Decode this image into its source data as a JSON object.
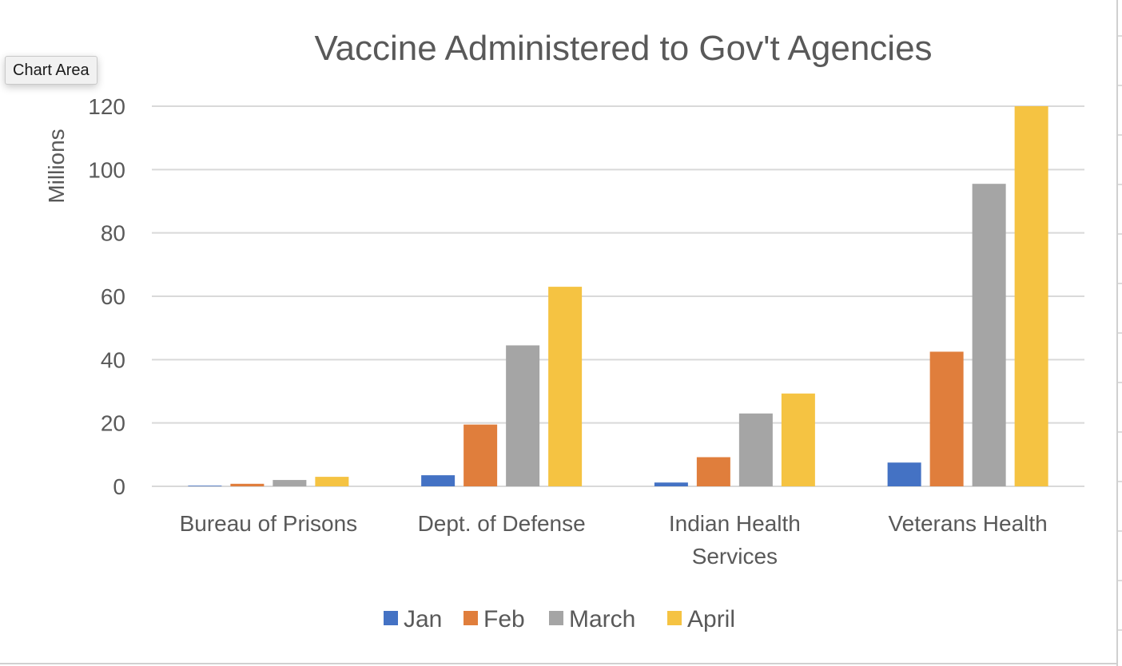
{
  "tooltip": {
    "label": "Chart Area"
  },
  "chart_data": {
    "type": "bar",
    "title": "Vaccine Administered to Gov't Agencies",
    "ylabel": "Millions",
    "xlabel": "",
    "ylim": [
      0,
      120
    ],
    "yticks": [
      0,
      20,
      40,
      60,
      80,
      100,
      120
    ],
    "grid": true,
    "legend_position": "bottom",
    "categories": [
      [
        "Bureau of Prisons"
      ],
      [
        "Dept. of Defense"
      ],
      [
        "Indian Health",
        "Services"
      ],
      [
        "Veterans Health"
      ]
    ],
    "series": [
      {
        "name": "Jan",
        "color": "#4472c4",
        "values": [
          0.2,
          3.5,
          1.2,
          7.5
        ]
      },
      {
        "name": "Feb",
        "color": "#e07e3c",
        "values": [
          0.8,
          19.5,
          9.2,
          42.5
        ]
      },
      {
        "name": "March",
        "color": "#a5a5a5",
        "values": [
          2.0,
          44.5,
          23.0,
          95.5
        ]
      },
      {
        "name": "April",
        "color": "#f5c342",
        "values": [
          3.0,
          63.0,
          29.3,
          120.0
        ]
      }
    ]
  }
}
